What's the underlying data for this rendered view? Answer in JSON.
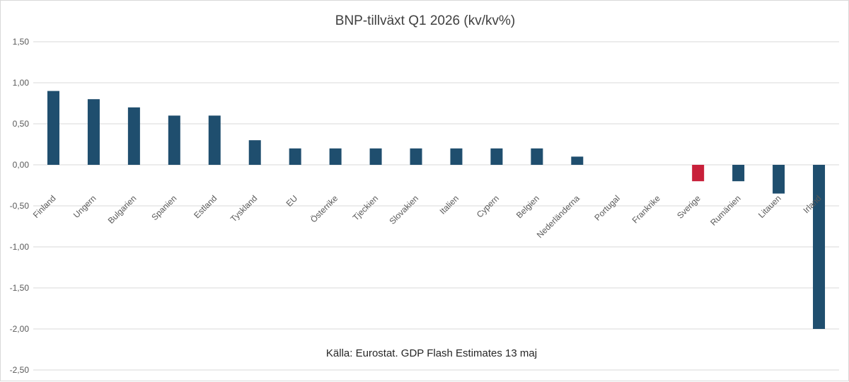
{
  "chart_data": {
    "type": "bar",
    "title": "BNP-tillväxt Q1 2026 (kv/kv%)",
    "source": "Källa: Eurostat. GDP Flash Estimates 13 maj",
    "categories": [
      "Finland",
      "Ungern",
      "Bulgarien",
      "Spanien",
      "Estland",
      "Tyskland",
      "EU",
      "Österrike",
      "Tjeckien",
      "Slovakien",
      "Italien",
      "Cypern",
      "Belgien",
      "Nederländerna",
      "Portugal",
      "Frankrike",
      "Sverige",
      "Rumänien",
      "Litauen",
      "Irland"
    ],
    "values": [
      0.9,
      0.8,
      0.7,
      0.6,
      0.6,
      0.3,
      0.2,
      0.2,
      0.2,
      0.2,
      0.2,
      0.2,
      0.2,
      0.1,
      0.0,
      0.0,
      -0.2,
      -0.2,
      -0.35,
      -2.0
    ],
    "ylim": [
      -2.5,
      1.5
    ],
    "yticks": [
      "1,50",
      "1,00",
      "0,50",
      "0,00",
      "-0,50",
      "-1,00",
      "-1,50",
      "-2,00",
      "-2,50"
    ],
    "xlabel": "",
    "ylabel": "",
    "grid": true,
    "colors": {
      "bar": "#1f4e6e",
      "highlight": "#c8203a",
      "highlight_category": "Sverige",
      "grid": "#d9d9d9"
    }
  }
}
